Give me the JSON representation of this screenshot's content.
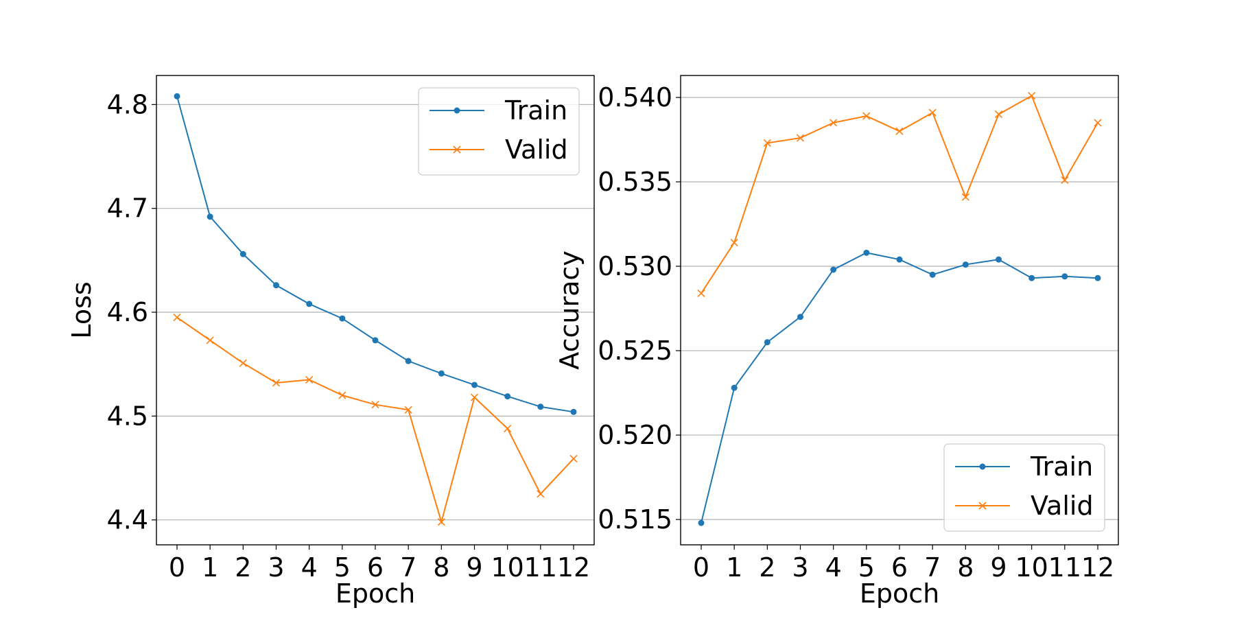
{
  "colors": {
    "train": "#1f77b4",
    "valid": "#ff7f0e",
    "grid": "#b0b0b0",
    "axis": "#000000"
  },
  "chart_data": [
    {
      "type": "line",
      "title": "",
      "xlabel": "Epoch",
      "ylabel": "Loss",
      "x": [
        0,
        1,
        2,
        3,
        4,
        5,
        6,
        7,
        8,
        9,
        10,
        11,
        12
      ],
      "xticks": [
        "0",
        "1",
        "2",
        "3",
        "4",
        "5",
        "6",
        "7",
        "8",
        "9",
        "10",
        "11",
        "12"
      ],
      "yticks": [
        4.4,
        4.5,
        4.6,
        4.7,
        4.8
      ],
      "ytick_labels": [
        "4.4",
        "4.5",
        "4.6",
        "4.7",
        "4.8"
      ],
      "ylim": [
        4.376,
        4.828
      ],
      "grid": "horizontal",
      "legend_position": "top-right",
      "series": [
        {
          "name": "Train",
          "marker": "circle",
          "color": "#1f77b4",
          "values": [
            4.808,
            4.692,
            4.656,
            4.626,
            4.608,
            4.594,
            4.573,
            4.553,
            4.541,
            4.53,
            4.519,
            4.509,
            4.504
          ]
        },
        {
          "name": "Valid",
          "marker": "x",
          "color": "#ff7f0e",
          "values": [
            4.595,
            4.573,
            4.551,
            4.532,
            4.535,
            4.52,
            4.511,
            4.506,
            4.398,
            4.518,
            4.488,
            4.425,
            4.459
          ]
        }
      ]
    },
    {
      "type": "line",
      "title": "",
      "xlabel": "Epoch",
      "ylabel": "Accuracy",
      "x": [
        0,
        1,
        2,
        3,
        4,
        5,
        6,
        7,
        8,
        9,
        10,
        11,
        12
      ],
      "xticks": [
        "0",
        "1",
        "2",
        "3",
        "4",
        "5",
        "6",
        "7",
        "8",
        "9",
        "10",
        "11",
        "12"
      ],
      "yticks": [
        0.515,
        0.52,
        0.525,
        0.53,
        0.535,
        0.54
      ],
      "ytick_labels": [
        "0.515",
        "0.520",
        "0.525",
        "0.530",
        "0.535",
        "0.540"
      ],
      "ylim": [
        0.5135,
        0.5413
      ],
      "grid": "horizontal",
      "legend_position": "bottom-right",
      "series": [
        {
          "name": "Train",
          "marker": "circle",
          "color": "#1f77b4",
          "values": [
            0.5148,
            0.5228,
            0.5255,
            0.527,
            0.5298,
            0.5308,
            0.5304,
            0.5295,
            0.5301,
            0.5304,
            0.5293,
            0.5294,
            0.5293
          ]
        },
        {
          "name": "Valid",
          "marker": "x",
          "color": "#ff7f0e",
          "values": [
            0.5284,
            0.5314,
            0.5373,
            0.5376,
            0.5385,
            0.5389,
            0.538,
            0.5391,
            0.5341,
            0.539,
            0.5401,
            0.5351,
            0.5385
          ]
        }
      ]
    }
  ]
}
